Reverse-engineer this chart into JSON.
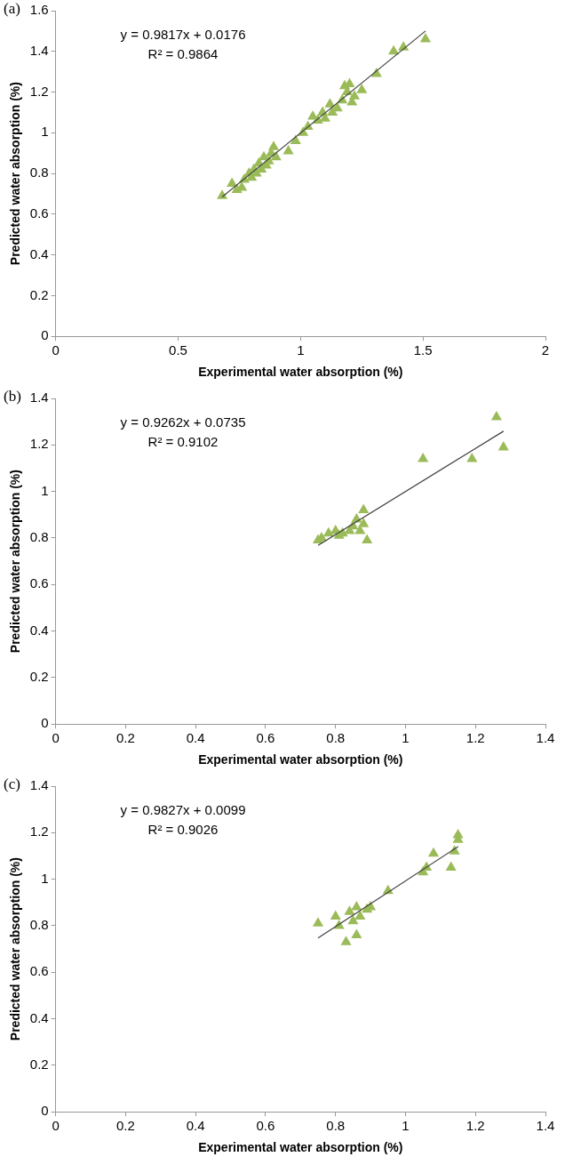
{
  "chart_data": [
    {
      "type": "scatter",
      "title": "(a)",
      "xlabel": "Experimental water absorption (%)",
      "ylabel": "Predicted water absorption (%)",
      "annotations": [
        "y = 0.9817x + 0.0176",
        "R² = 0.9864"
      ],
      "xlim": [
        0,
        2
      ],
      "xticks": [
        0,
        0.5,
        1,
        1.5,
        2
      ],
      "ylim": [
        0,
        1.6
      ],
      "yticks": [
        0,
        0.2,
        0.4,
        0.6,
        0.8,
        1,
        1.2,
        1.4,
        1.6
      ],
      "grid": false,
      "legend": false,
      "marker": "triangle",
      "series": [
        {
          "color": "#9bbb59",
          "x": [
            0.68,
            0.72,
            0.74,
            0.76,
            0.77,
            0.79,
            0.8,
            0.81,
            0.82,
            0.83,
            0.84,
            0.85,
            0.86,
            0.87,
            0.88,
            0.89,
            0.9,
            0.95,
            0.98,
            1.01,
            1.03,
            1.05,
            1.07,
            1.09,
            1.1,
            1.12,
            1.13,
            1.15,
            1.17,
            1.18,
            1.19,
            1.2,
            1.21,
            1.22,
            1.24,
            1.25,
            1.31,
            1.38,
            1.42,
            1.51
          ],
          "values": [
            0.69,
            0.75,
            0.72,
            0.73,
            0.77,
            0.8,
            0.78,
            0.82,
            0.8,
            0.85,
            0.82,
            0.88,
            0.84,
            0.86,
            0.9,
            0.93,
            0.88,
            0.91,
            0.96,
            1.0,
            1.03,
            1.08,
            1.06,
            1.1,
            1.07,
            1.14,
            1.1,
            1.12,
            1.16,
            1.23,
            1.2,
            1.24,
            1.15,
            1.18,
            null,
            1.21,
            1.29,
            1.4,
            1.42,
            1.46
          ]
        },
        {
          "type": "line",
          "color": "#404040",
          "marker": "none",
          "x": [
            0.68,
            1.51
          ],
          "values": [
            0.685,
            1.5
          ]
        }
      ]
    },
    {
      "type": "scatter",
      "title": "(b)",
      "xlabel": "Experimental water absorption (%)",
      "ylabel": "Predicted water absorption (%)",
      "annotations": [
        "y = 0.9262x + 0.0735",
        "R² = 0.9102"
      ],
      "xlim": [
        0,
        1.4
      ],
      "xticks": [
        0,
        0.2,
        0.4,
        0.6,
        0.8,
        1,
        1.2,
        1.4
      ],
      "ylim": [
        0,
        1.4
      ],
      "yticks": [
        0,
        0.2,
        0.4,
        0.6,
        0.8,
        1,
        1.2,
        1.4
      ],
      "grid": false,
      "legend": false,
      "marker": "triangle",
      "series": [
        {
          "color": "#9bbb59",
          "x": [
            0.75,
            0.76,
            0.78,
            0.8,
            0.81,
            0.82,
            0.84,
            0.85,
            0.86,
            0.87,
            0.88,
            0.88,
            0.89,
            1.05,
            1.19,
            1.26,
            1.28
          ],
          "values": [
            0.79,
            0.8,
            0.82,
            0.83,
            0.81,
            0.82,
            0.83,
            0.85,
            0.88,
            0.83,
            0.92,
            0.86,
            0.79,
            1.14,
            1.14,
            1.32,
            1.19
          ]
        },
        {
          "type": "line",
          "color": "#404040",
          "marker": "none",
          "x": [
            0.75,
            1.28
          ],
          "values": [
            0.768,
            1.259
          ]
        }
      ]
    },
    {
      "type": "scatter",
      "title": "(c)",
      "xlabel": "Experimental water absorption (%)",
      "ylabel": "Predicted water absorption (%)",
      "annotations": [
        "y = 0.9827x + 0.0099",
        "R² = 0.9026"
      ],
      "xlim": [
        0,
        1.4
      ],
      "xticks": [
        0,
        0.2,
        0.4,
        0.6,
        0.8,
        1,
        1.2,
        1.4
      ],
      "ylim": [
        0,
        1.4
      ],
      "yticks": [
        0,
        0.2,
        0.4,
        0.6,
        0.8,
        1,
        1.2,
        1.4
      ],
      "grid": false,
      "legend": false,
      "marker": "triangle",
      "series": [
        {
          "color": "#9bbb59",
          "x": [
            0.75,
            0.8,
            0.81,
            0.83,
            0.84,
            0.85,
            0.86,
            0.86,
            0.87,
            0.89,
            0.9,
            0.95,
            1.05,
            1.06,
            1.08,
            1.13,
            1.14,
            1.15,
            1.15
          ],
          "values": [
            0.81,
            0.84,
            0.8,
            0.73,
            0.86,
            0.82,
            0.88,
            0.76,
            0.84,
            0.87,
            0.88,
            0.95,
            1.03,
            1.05,
            1.11,
            1.05,
            1.12,
            1.17,
            1.19
          ]
        },
        {
          "type": "line",
          "color": "#404040",
          "marker": "none",
          "x": [
            0.75,
            1.15
          ],
          "values": [
            0.747,
            1.14
          ]
        }
      ]
    }
  ]
}
